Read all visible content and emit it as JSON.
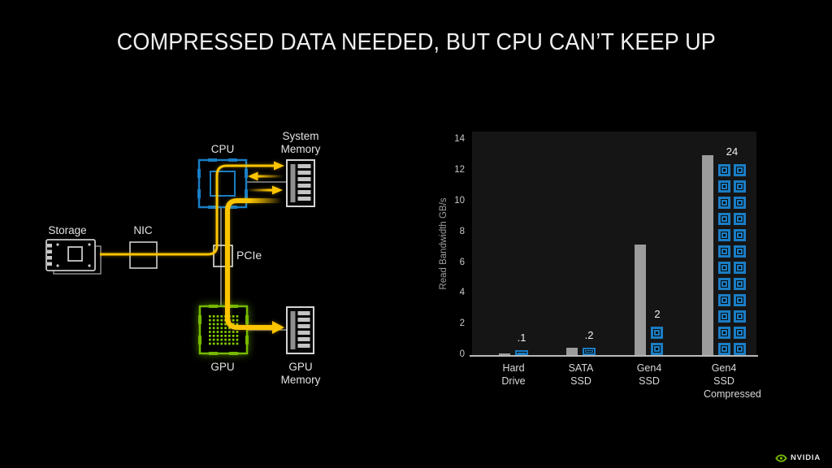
{
  "title": "COMPRESSED DATA NEEDED, BUT CPU CAN’T KEEP UP",
  "diagram": {
    "labels": {
      "storage": "Storage",
      "nic": "NIC",
      "pcie": "PCIe",
      "cpu": "CPU",
      "system_memory": "System Memory",
      "gpu": "GPU",
      "gpu_memory": "GPU Memory"
    },
    "icons": {
      "storage": "storage-card-icon",
      "nic": "nic-box-icon",
      "pcie": "pcie-box-icon",
      "cpu": "cpu-socket-icon",
      "gpu": "gpu-chip-icon",
      "memory": "ram-stick-icon"
    },
    "colors": {
      "cpu_blue": "#1a7dc4",
      "gpu_green": "#76b900",
      "flow_yellow": "#fdc500",
      "link_gray": "#909090",
      "icon_gray": "#c8c8c8"
    }
  },
  "chart_data": {
    "type": "bar",
    "title": "",
    "ylabel": "Read Bandwidth GB/s",
    "categories": [
      "Hard Drive",
      "SATA SSD",
      "Gen4 SSD",
      "Gen4 SSD Compressed"
    ],
    "yticks": [
      0,
      2,
      4,
      6,
      8,
      10,
      12,
      14
    ],
    "ylim": [
      0,
      14.6
    ],
    "grid": false,
    "legend": "none",
    "plot_background": "#151515",
    "series": [
      {
        "name": "read-bandwidth-bar",
        "type": "bar",
        "color": "#9c9c9c",
        "values": [
          0.1,
          0.45,
          7.2,
          13
        ]
      },
      {
        "name": "bandwidth-chip-icons",
        "type": "icon-stack",
        "unit_per_icon": 1,
        "color": "#1a7dc4",
        "values": [
          0.1,
          0.2,
          2,
          24
        ],
        "labels": [
          ".1",
          ".2",
          "2",
          "24"
        ]
      }
    ]
  },
  "footer": {
    "brand": "NVIDIA",
    "brand_icon": "nvidia-eye-icon"
  }
}
